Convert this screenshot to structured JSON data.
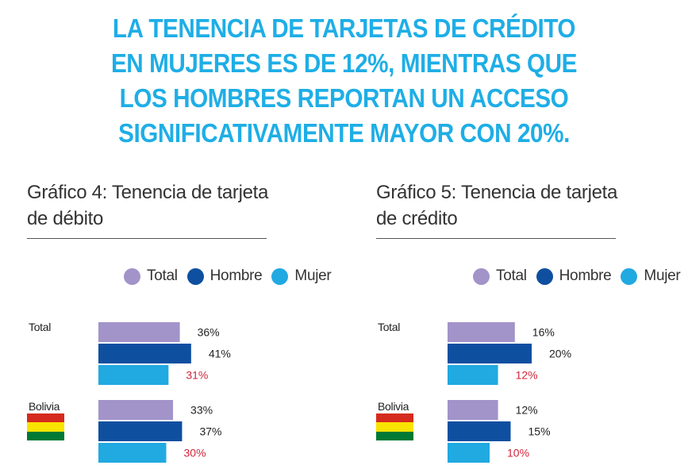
{
  "headline": [
    "LA TENENCIA DE TARJETAS DE CRÉDITO",
    "EN MUJERES ES DE 12%, MIENTRAS QUE",
    "LOS HOMBRES REPORTAN UN ACCESO",
    "SIGNIFICATIVAMENTE MAYOR CON 20%."
  ],
  "colors": {
    "headline": "#1eaee6",
    "total": "#a293c9",
    "hombre": "#0f4fa0",
    "mujer": "#21a9e1",
    "mujer_label": "#d0253a",
    "flag": [
      "#d52b1e",
      "#f9e300",
      "#007934"
    ]
  },
  "legend": [
    {
      "label": "Total",
      "color_key": "total"
    },
    {
      "label": "Hombre",
      "color_key": "hombre"
    },
    {
      "label": "Mujer",
      "color_key": "mujer"
    }
  ],
  "chart_data": [
    {
      "type": "bar",
      "orientation": "horizontal",
      "title_lines": [
        "Gráfico 4: Tenencia de tarjeta",
        "de débito"
      ],
      "categories": [
        "Total",
        "Bolivia"
      ],
      "series": [
        {
          "name": "Total",
          "values": [
            36,
            33
          ],
          "labels": [
            "36%",
            "33%"
          ]
        },
        {
          "name": "Hombre",
          "values": [
            41,
            37
          ],
          "labels": [
            "41%",
            "37%"
          ]
        },
        {
          "name": "Mujer",
          "values": [
            31,
            30
          ],
          "labels": [
            "31%",
            "30%"
          ]
        }
      ],
      "legend_position": "top",
      "xlim": [
        0,
        60
      ],
      "grid": false
    },
    {
      "type": "bar",
      "orientation": "horizontal",
      "title_lines": [
        "Gráfico 5: Tenencia de tarjeta",
        "de crédito"
      ],
      "categories": [
        "Total",
        "Bolivia"
      ],
      "series": [
        {
          "name": "Total",
          "values": [
            16,
            12
          ],
          "labels": [
            "16%",
            "12%"
          ]
        },
        {
          "name": "Hombre",
          "values": [
            20,
            15
          ],
          "labels": [
            "20%",
            "15%"
          ]
        },
        {
          "name": "Mujer",
          "values": [
            12,
            10
          ],
          "labels": [
            "12%",
            "10%"
          ]
        }
      ],
      "legend_position": "top",
      "xlim": [
        0,
        30
      ],
      "grid": false
    }
  ]
}
